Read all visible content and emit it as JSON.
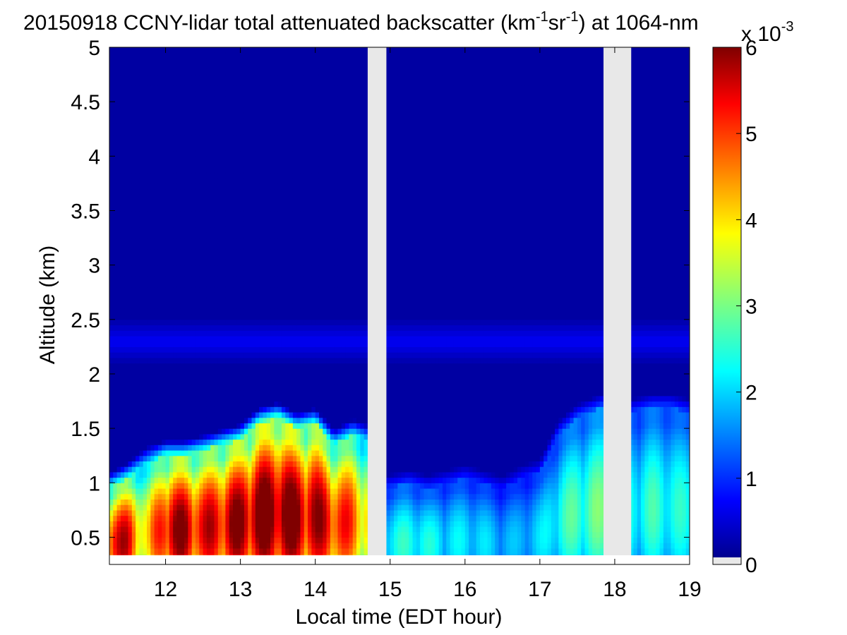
{
  "chart_data": {
    "type": "heatmap",
    "title": {
      "prefix": "20150918 CCNY-lidar total attenuated backscatter (km",
      "exp1": "-1",
      "mid": "sr",
      "exp2": "-1",
      "suffix": ") at 1064-nm"
    },
    "xlabel": "Local time (EDT hour)",
    "ylabel": "Altitude (km)",
    "xlim": [
      11.25,
      19.0
    ],
    "ylim": [
      0.25,
      5.0
    ],
    "xticks": [
      12,
      13,
      14,
      15,
      16,
      17,
      18,
      19
    ],
    "xtick_labels": [
      "12",
      "13",
      "14",
      "15",
      "16",
      "17",
      "18",
      "19"
    ],
    "yticks": [
      0.5,
      1,
      1.5,
      2,
      2.5,
      3,
      3.5,
      4,
      4.5,
      5
    ],
    "ytick_labels": [
      "0.5",
      "1",
      "1.5",
      "2",
      "2.5",
      "3",
      "3.5",
      "4",
      "4.5",
      "5"
    ],
    "colorbar": {
      "range": [
        0,
        6
      ],
      "ticks": [
        0,
        1,
        2,
        3,
        4,
        5,
        6
      ],
      "tick_labels": [
        "0",
        "1",
        "2",
        "3",
        "4",
        "5",
        "6"
      ],
      "multiplier": {
        "base": "x 10",
        "exp": "-3"
      },
      "colormap": "jet",
      "no_data_color": "#e8e8e8"
    },
    "data_gaps_hours": [
      [
        14.7,
        14.95
      ],
      [
        17.85,
        18.22
      ]
    ],
    "profile": {
      "x_hours": [
        11.25,
        11.5,
        11.75,
        12.0,
        12.25,
        12.5,
        12.75,
        13.0,
        13.25,
        13.5,
        13.75,
        14.0,
        14.25,
        14.5,
        14.7,
        14.95,
        15.25,
        15.5,
        15.75,
        16.0,
        16.25,
        16.5,
        16.75,
        17.0,
        17.25,
        17.5,
        17.85,
        18.22,
        18.5,
        18.75,
        19.0
      ],
      "boundary_layer_top_km": [
        0.95,
        1.05,
        1.2,
        1.25,
        1.25,
        1.3,
        1.35,
        1.4,
        1.55,
        1.6,
        1.5,
        1.55,
        1.35,
        1.45,
        1.4,
        0.95,
        1.0,
        0.95,
        1.0,
        1.05,
        1.0,
        0.95,
        1.05,
        1.1,
        1.45,
        1.6,
        1.7,
        1.65,
        1.7,
        1.7,
        1.65
      ],
      "core_backscatter_x1e3": [
        5.5,
        5.0,
        3.5,
        5.5,
        5.5,
        5.0,
        5.3,
        5.6,
        5.8,
        5.9,
        5.7,
        5.4,
        5.0,
        4.5,
        3.8,
        2.2,
        2.3,
        2.2,
        2.0,
        2.0,
        1.9,
        1.7,
        1.7,
        1.9,
        2.3,
        2.6,
        2.7,
        2.2,
        2.4,
        2.3,
        2.2
      ],
      "aerosol_layer_km": [
        2.0,
        2.6
      ],
      "aerosol_layer_backscatter_x1e3": 0.7,
      "background_backscatter_x1e3": 0.2
    }
  }
}
